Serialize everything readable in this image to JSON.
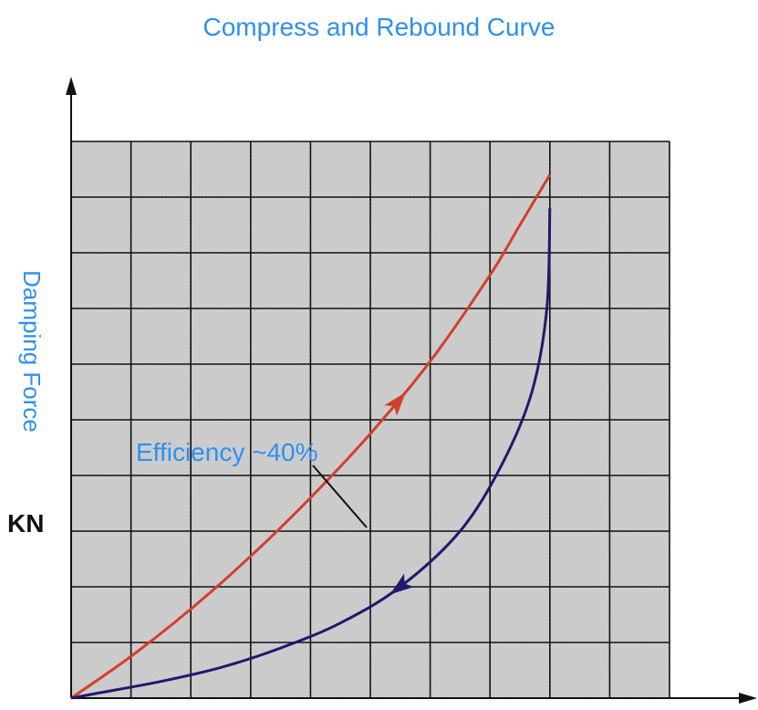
{
  "chart_data": {
    "type": "line",
    "title": "Compress and Rebound Curve",
    "ylabel": "Damping Force",
    "yunit": "KN",
    "annotation": "Efficiency ~40%",
    "grid": true,
    "xlim": [
      0,
      10
    ],
    "ylim": [
      0,
      10
    ],
    "series": [
      {
        "color": "#d2402d",
        "direction": "increasing",
        "x": [
          0,
          1,
          2,
          3,
          4,
          5,
          6,
          7,
          7.5,
          8
        ],
        "y": [
          0,
          0.75,
          1.6,
          2.55,
          3.6,
          4.75,
          6.05,
          7.6,
          8.5,
          9.4
        ]
      },
      {
        "color": "#1f1a6e",
        "direction": "decreasing",
        "x": [
          8,
          7.95,
          7.7,
          7.2,
          6.5,
          5.5,
          4.5,
          3.5,
          2.5,
          1.5,
          0.5,
          0
        ],
        "y": [
          8.8,
          7.0,
          5.5,
          4.2,
          3.0,
          2.0,
          1.35,
          0.9,
          0.55,
          0.3,
          0.1,
          0
        ]
      }
    ],
    "colors": {
      "title": "#2f8ff0",
      "ylabel": "#2f8ff0",
      "annotation": "#2f8ff0",
      "unit": "#111111",
      "grid_background": "#d0d0d0",
      "grid_lines": "#111111"
    }
  }
}
